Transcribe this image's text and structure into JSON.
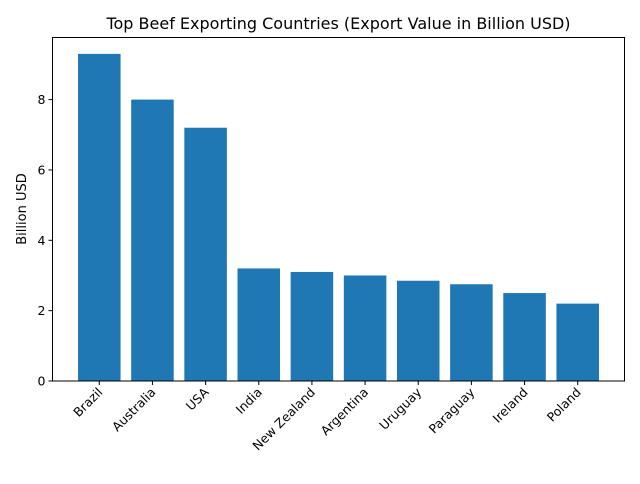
{
  "chart_data": {
    "type": "bar",
    "title": "Top Beef Exporting Countries (Export Value in Billion USD)",
    "xlabel": "",
    "ylabel": "Billion USD",
    "categories": [
      "Brazil",
      "Australia",
      "USA",
      "India",
      "New Zealand",
      "Argentina",
      "Uruguay",
      "Paraguay",
      "Ireland",
      "Poland"
    ],
    "values": [
      9.3,
      8.0,
      7.2,
      3.2,
      3.1,
      3.0,
      2.85,
      2.75,
      2.5,
      2.2
    ],
    "ylim": [
      0,
      9.765
    ],
    "yticks": [
      0,
      2,
      4,
      6,
      8
    ],
    "grid": false,
    "bar_color": "#1f77b4"
  }
}
